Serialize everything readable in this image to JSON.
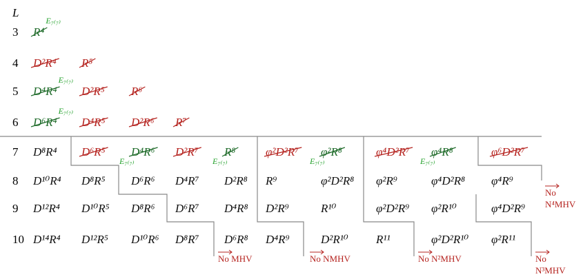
{
  "header": {
    "axis_label": "L"
  },
  "rows": [
    {
      "L": "3",
      "terms": [
        {
          "text": "R⁴",
          "color": "green",
          "struck": true,
          "label": "E₇₍₇₎"
        }
      ]
    },
    {
      "L": "4",
      "terms": [
        {
          "text": "D²R⁴",
          "color": "red",
          "struck": true
        },
        {
          "text": "R⁵",
          "color": "red",
          "struck": true
        }
      ]
    },
    {
      "L": "5",
      "terms": [
        {
          "text": "D⁴R⁴",
          "color": "green",
          "struck": true,
          "label": "E₇₍₇₎"
        },
        {
          "text": "D²R⁵",
          "color": "red",
          "struck": true
        },
        {
          "text": "R⁶",
          "color": "red",
          "struck": true
        }
      ]
    },
    {
      "L": "6",
      "terms": [
        {
          "text": "D⁶R⁴",
          "color": "green",
          "struck": true,
          "label": "E₇₍₇₎"
        },
        {
          "text": "D⁴R⁵",
          "color": "red",
          "struck": true
        },
        {
          "text": "D²R⁶",
          "color": "red",
          "struck": true
        },
        {
          "text": "R⁷",
          "color": "red",
          "struck": true
        }
      ]
    },
    {
      "L": "7",
      "terms": [
        {
          "text": "D⁸R⁴",
          "color": "black",
          "struck": false
        },
        {
          "text": "D⁶R⁵",
          "color": "red",
          "struck": true
        },
        {
          "text": "D⁴R⁶",
          "color": "green",
          "struck": true,
          "label": "E₇₍₇₎"
        },
        {
          "text": "D²R⁷",
          "color": "red",
          "struck": true
        },
        {
          "text": "R⁸",
          "color": "green",
          "struck": true,
          "label": "E₇₍₇₎"
        },
        {
          "text": "φ²D²R⁷",
          "color": "red",
          "struck": true
        },
        {
          "text": "φ²R⁸",
          "color": "green",
          "struck": true,
          "label": "E₇₍₇₎"
        },
        {
          "text": "φ⁴D²R⁷",
          "color": "red",
          "struck": true
        },
        {
          "text": "φ⁴R⁸",
          "color": "green",
          "struck": true,
          "label": "E₇₍₇₎"
        },
        {
          "text": "φ⁶D²R⁷",
          "color": "red",
          "struck": true
        }
      ]
    },
    {
      "L": "8",
      "terms": [
        {
          "text": "D¹⁰R⁴",
          "color": "black",
          "struck": false
        },
        {
          "text": "D⁸R⁵",
          "color": "black",
          "struck": false
        },
        {
          "text": "D⁶R⁶",
          "color": "black",
          "struck": false
        },
        {
          "text": "D⁴R⁷",
          "color": "black",
          "struck": false
        },
        {
          "text": "D²R⁸",
          "color": "black",
          "struck": false
        },
        {
          "text": "R⁹",
          "color": "black",
          "struck": false
        },
        {
          "text": "φ²D²R⁸",
          "color": "black",
          "struck": false
        },
        {
          "text": "φ²R⁹",
          "color": "black",
          "struck": false
        },
        {
          "text": "φ⁴D²R⁸",
          "color": "black",
          "struck": false
        },
        {
          "text": "φ⁴R⁹",
          "color": "black",
          "struck": false
        }
      ]
    },
    {
      "L": "9",
      "terms": [
        {
          "text": "D¹²R⁴",
          "color": "black",
          "struck": false
        },
        {
          "text": "D¹⁰R⁵",
          "color": "black",
          "struck": false
        },
        {
          "text": "D⁸R⁶",
          "color": "black",
          "struck": false
        },
        {
          "text": "D⁶R⁷",
          "color": "black",
          "struck": false
        },
        {
          "text": "D⁴R⁸",
          "color": "black",
          "struck": false
        },
        {
          "text": "D²R⁹",
          "color": "black",
          "struck": false
        },
        {
          "text": "R¹⁰",
          "color": "black",
          "struck": false
        },
        {
          "text": "φ²D²R⁹",
          "color": "black",
          "struck": false
        },
        {
          "text": "φ²R¹⁰",
          "color": "black",
          "struck": false
        },
        {
          "text": "φ⁴D²R⁹",
          "color": "black",
          "struck": false
        }
      ]
    },
    {
      "L": "10",
      "terms": [
        {
          "text": "D¹⁴R⁴",
          "color": "black",
          "struck": false
        },
        {
          "text": "D¹²R⁵",
          "color": "black",
          "struck": false
        },
        {
          "text": "D¹⁰R⁶",
          "color": "black",
          "struck": false
        },
        {
          "text": "D⁸R⁷",
          "color": "black",
          "struck": false
        },
        {
          "text": "D⁶R⁸",
          "color": "black",
          "struck": false
        },
        {
          "text": "D⁴R⁹",
          "color": "black",
          "struck": false
        },
        {
          "text": "D²R¹⁰",
          "color": "black",
          "struck": false
        },
        {
          "text": "R¹¹",
          "color": "black",
          "struck": false
        },
        {
          "text": "φ²D²R¹⁰",
          "color": "black",
          "struck": false
        },
        {
          "text": "φ²R¹¹",
          "color": "black",
          "struck": false
        }
      ]
    }
  ],
  "cuts": [
    {
      "lines": [
        "No MHV"
      ]
    },
    {
      "lines": [
        "No NMHV"
      ]
    },
    {
      "lines": [
        "No N²MHV"
      ]
    },
    {
      "lines": [
        "No",
        "N³MHV"
      ]
    },
    {
      "lines": [
        "No",
        "N⁴MHV"
      ]
    }
  ]
}
